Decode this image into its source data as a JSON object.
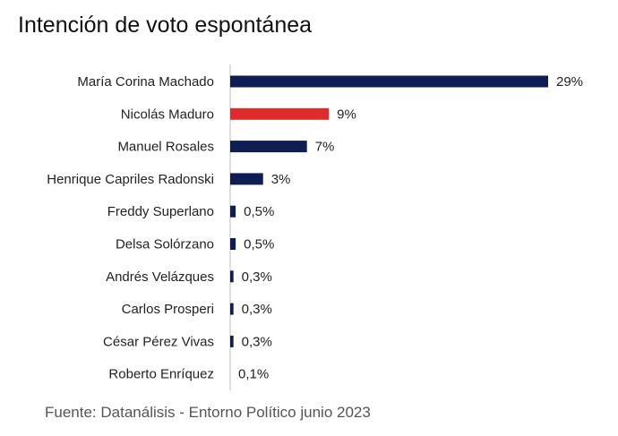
{
  "title": "Intención de voto espontánea",
  "source": "Fuente: Datanálisis - Entorno Político junio 2023",
  "colors": {
    "primary": "#0f1d55",
    "highlight": "#e02b2b",
    "axis": "#bfbfbf"
  },
  "chart_data": {
    "type": "bar",
    "orientation": "horizontal",
    "title": "Intención de voto espontánea",
    "xlabel": "",
    "ylabel": "",
    "xlim": [
      0,
      29
    ],
    "grid": false,
    "legend": "none",
    "categories": [
      "María Corina Machado",
      "Nicolás Maduro",
      "Manuel Rosales",
      "Henrique Capriles Radonski",
      "Freddy Superlano",
      "Delsa Solórzano",
      "Andrés Velázques",
      "Carlos Prosperi",
      "César Pérez Vivas",
      "Roberto Enríquez"
    ],
    "values": [
      29,
      9,
      7,
      3,
      0.5,
      0.5,
      0.3,
      0.3,
      0.3,
      0.1
    ],
    "value_labels": [
      "29%",
      "9%",
      "7%",
      "3%",
      "0,5%",
      "0,5%",
      "0,3%",
      "0,3%",
      "0,3%",
      "0,1%"
    ],
    "bar_colors": [
      "#0f1d55",
      "#e02b2b",
      "#0f1d55",
      "#0f1d55",
      "#0f1d55",
      "#0f1d55",
      "#0f1d55",
      "#0f1d55",
      "#0f1d55",
      "#0f1d55"
    ]
  }
}
